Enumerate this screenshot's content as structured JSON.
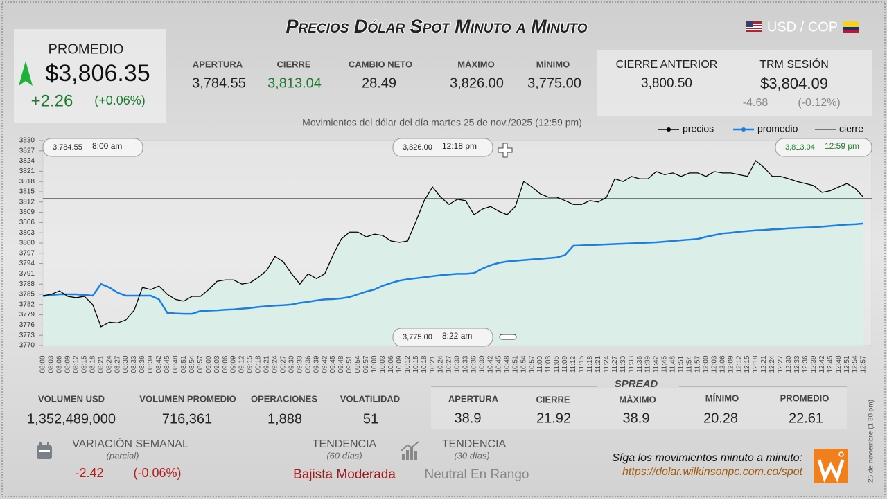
{
  "header": {
    "title": "Precios Dólar Spot Minuto a Minuto",
    "pair": "USD / COP"
  },
  "promedio": {
    "label": "PROMEDIO",
    "value": "$3,806.35",
    "change": "+2.26",
    "change_pct": "(+0.06%)"
  },
  "stats": [
    {
      "label": "APERTURA",
      "value": "3,784.55"
    },
    {
      "label": "CIERRE",
      "value": "3,813.04"
    },
    {
      "label": "CAMBIO NETO",
      "value": "28.49"
    },
    {
      "label": "MÁXIMO",
      "value": "3,826.00"
    },
    {
      "label": "MÍNIMO",
      "value": "3,775.00"
    }
  ],
  "previous": [
    {
      "label": "CIERRE ANTERIOR",
      "value": "3,800.50"
    },
    {
      "label": "TRM SESIÓN",
      "value": "$3,804.09",
      "change": "-4.68",
      "change_pct": "(-0.12%)"
    }
  ],
  "chart_data": {
    "type": "line",
    "subtitle": "Movimientos del dólar del día martes 25 de nov./2025 (12:59 pm)",
    "categories": [
      "08:00",
      "08:03",
      "08:06",
      "08:09",
      "08:12",
      "08:15",
      "08:18",
      "08:21",
      "08:24",
      "08:27",
      "08:30",
      "08:33",
      "08:36",
      "08:39",
      "08:42",
      "08:45",
      "08:48",
      "08:51",
      "08:54",
      "08:57",
      "09:00",
      "09:03",
      "09:06",
      "09:09",
      "09:12",
      "09:15",
      "09:18",
      "09:21",
      "09:24",
      "09:27",
      "09:30",
      "09:33",
      "09:36",
      "09:39",
      "09:42",
      "09:45",
      "09:48",
      "09:51",
      "09:54",
      "09:57",
      "10:00",
      "10:03",
      "10:06",
      "10:09",
      "10:12",
      "10:15",
      "10:18",
      "10:21",
      "10:24",
      "10:27",
      "10:30",
      "10:33",
      "10:36",
      "10:39",
      "10:42",
      "10:45",
      "10:48",
      "10:51",
      "10:54",
      "10:57",
      "11:00",
      "11:03",
      "11:06",
      "11:09",
      "11:12",
      "11:15",
      "11:18",
      "11:21",
      "11:24",
      "11:27",
      "11:30",
      "11:33",
      "11:36",
      "11:39",
      "11:42",
      "11:45",
      "11:48",
      "11:51",
      "11:54",
      "11:57",
      "12:00",
      "12:03",
      "12:06",
      "12:09",
      "12:12",
      "12:15",
      "12:18",
      "12:21",
      "12:24",
      "12:27",
      "12:30",
      "12:33",
      "12:36",
      "12:39",
      "12:42",
      "12:45",
      "12:48",
      "12:51",
      "12:54",
      "12:57"
    ],
    "series": [
      {
        "name": "precios",
        "color": "#000000",
        "values": [
          3784.6,
          3785,
          3786,
          3784.4,
          3784,
          3784.4,
          3782,
          3775.5,
          3776.8,
          3776.6,
          3777.5,
          3780.3,
          3787,
          3786.4,
          3787.4,
          3785,
          3783.5,
          3783,
          3784.4,
          3784.4,
          3786.4,
          3788.8,
          3789.2,
          3789.2,
          3788,
          3788.4,
          3790,
          3792,
          3796.1,
          3794.5,
          3791,
          3788,
          3791,
          3789.6,
          3791,
          3796.5,
          3801.2,
          3803.2,
          3803.2,
          3801.8,
          3802.6,
          3802.2,
          3800.6,
          3800.2,
          3800.6,
          3806.3,
          3812.4,
          3816.4,
          3813.4,
          3811.3,
          3812.8,
          3812.4,
          3808.3,
          3809.9,
          3810.7,
          3809.3,
          3808.3,
          3810.7,
          3818,
          3816.4,
          3814.4,
          3813.4,
          3813.4,
          3812.4,
          3811.3,
          3811.3,
          3812.4,
          3812,
          3813.4,
          3818.8,
          3818,
          3819.5,
          3818.8,
          3818.8,
          3820.9,
          3820,
          3820.5,
          3819.5,
          3820.5,
          3820.5,
          3819.5,
          3820.9,
          3820.5,
          3820.5,
          3820,
          3819.5,
          3824.1,
          3822.1,
          3819.5,
          3819.5,
          3818.8,
          3818,
          3817.4,
          3816.8,
          3814.8,
          3815.3,
          3816.4,
          3817.4,
          3816,
          3813.4
        ]
      },
      {
        "name": "promedio",
        "color": "#1a7fe0",
        "values": [
          3784.5,
          3784.8,
          3785,
          3785,
          3785,
          3784.8,
          3784.6,
          3788,
          3787,
          3785.5,
          3784.6,
          3784.6,
          3784.6,
          3784.6,
          3783.5,
          3779.6,
          3779.4,
          3779.3,
          3779.3,
          3780.1,
          3780.2,
          3780.3,
          3780.5,
          3780.6,
          3780.8,
          3781,
          3781.3,
          3781.5,
          3781.7,
          3781.8,
          3782,
          3782.5,
          3782.8,
          3783.2,
          3783.5,
          3783.6,
          3783.8,
          3784.2,
          3785,
          3785.8,
          3786.4,
          3787.5,
          3788.3,
          3789,
          3789.4,
          3789.7,
          3790,
          3790.3,
          3790.6,
          3790.8,
          3791,
          3791,
          3791.2,
          3792.5,
          3793.5,
          3794.2,
          3794.6,
          3794.8,
          3795,
          3795.2,
          3795.4,
          3795.6,
          3795.8,
          3796.5,
          3799.2,
          3799.3,
          3799.4,
          3799.5,
          3799.6,
          3799.7,
          3799.8,
          3799.9,
          3800,
          3800.1,
          3800.2,
          3800.4,
          3800.6,
          3800.8,
          3801,
          3801.2,
          3801.8,
          3802.3,
          3802.8,
          3803,
          3803.3,
          3803.5,
          3803.7,
          3803.8,
          3804,
          3804.1,
          3804.3,
          3804.4,
          3804.5,
          3804.6,
          3804.8,
          3805,
          3805.2,
          3805.4,
          3805.5,
          3805.7
        ]
      }
    ],
    "reference_line": {
      "name": "cierre",
      "value": 3813.04,
      "color": "#555555"
    },
    "area_color": "#d9efe8",
    "ylim": [
      3770,
      3830
    ],
    "yticks": [
      3770,
      3773,
      3776,
      3779,
      3782,
      3785,
      3788,
      3791,
      3794,
      3797,
      3800,
      3803,
      3806,
      3809,
      3812,
      3815,
      3818,
      3821,
      3824,
      3827,
      3830
    ],
    "annotations": [
      {
        "value": "3,784.55",
        "time": "8:00 am"
      },
      {
        "value": "3,826.00",
        "time": "12:18 pm"
      },
      {
        "value": "3,813.04",
        "time": "12:59 pm"
      },
      {
        "value": "3,775.00",
        "time": "8:22 am"
      }
    ]
  },
  "volume_stats": [
    {
      "label": "VOLUMEN USD",
      "value": "1,352,489,000"
    },
    {
      "label": "VOLUMEN PROMEDIO",
      "value": "716,361"
    },
    {
      "label": "OPERACIONES",
      "value": "1,888"
    },
    {
      "label": "VOLATILIDAD",
      "value": "51"
    }
  ],
  "spread": {
    "title": "SPREAD",
    "items": [
      {
        "label": "APERTURA",
        "value": "38.9"
      },
      {
        "label": "CIERRE",
        "value": "21.92"
      },
      {
        "label": "MÁXIMO",
        "value": "38.9"
      },
      {
        "label": "MÍNIMO",
        "value": "20.28"
      },
      {
        "label": "PROMEDIO",
        "value": "22.61"
      }
    ]
  },
  "weekly": {
    "label": "VARIACIÓN SEMANAL",
    "note": "(parcial)",
    "change": "-2.42",
    "change_pct": "(-0.06%)"
  },
  "trends": [
    {
      "label": "TENDENCIA",
      "period": "(60 días)",
      "value": "Bajista Moderada"
    },
    {
      "label": "TENDENCIA",
      "period": "(30 días)",
      "value": "Neutral En Rango"
    }
  ],
  "footer": {
    "prompt": "Síga los movimientos minuto a minuto:",
    "link": "https://dolar.wilkinsonpc.com.co/spot",
    "timestamp": "25 de noviembre (1:30 pm)"
  }
}
